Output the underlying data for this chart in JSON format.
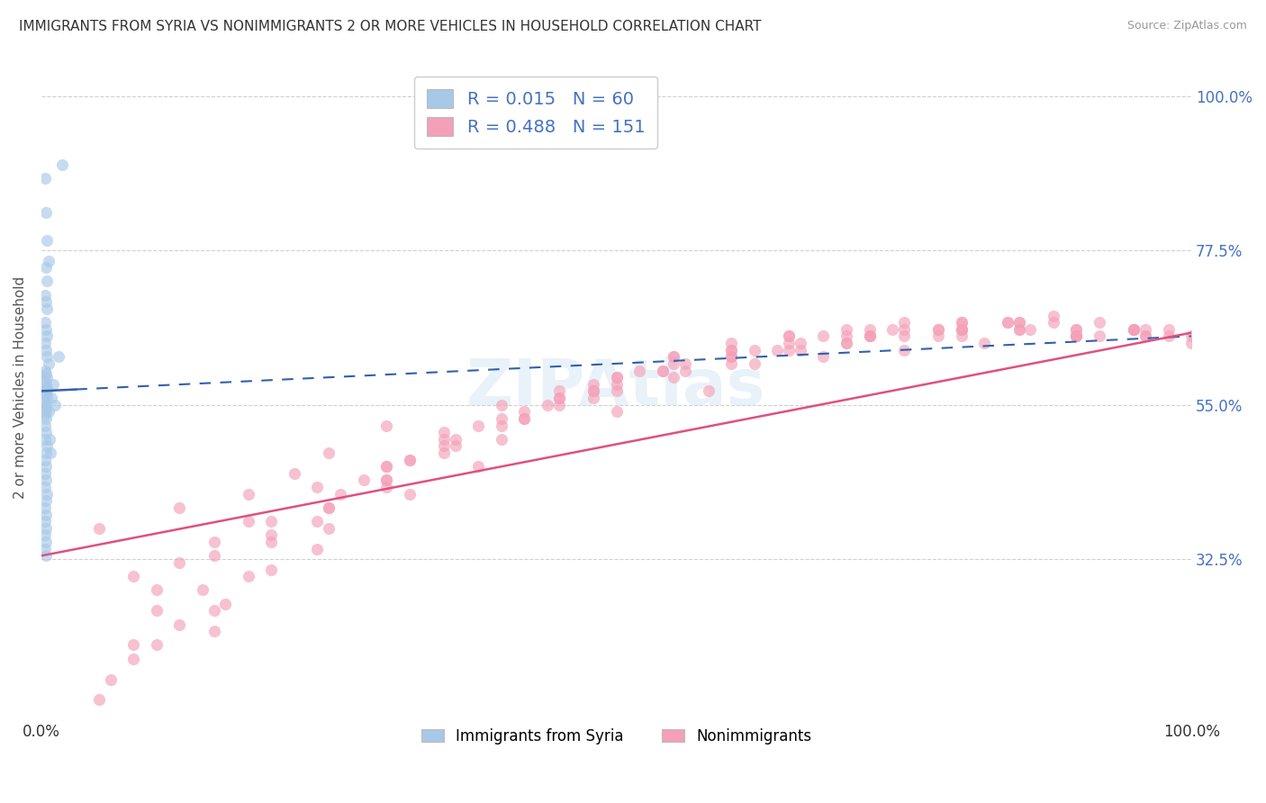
{
  "title": "IMMIGRANTS FROM SYRIA VS NONIMMIGRANTS 2 OR MORE VEHICLES IN HOUSEHOLD CORRELATION CHART",
  "source": "Source: ZipAtlas.com",
  "ylabel": "2 or more Vehicles in Household",
  "xlim": [
    0.0,
    100.0
  ],
  "ylim": [
    10.0,
    105.0
  ],
  "xtick_labels": [
    "0.0%",
    "100.0%"
  ],
  "xtick_positions": [
    0.0,
    100.0
  ],
  "ytick_labels": [
    "32.5%",
    "55.0%",
    "77.5%",
    "100.0%"
  ],
  "ytick_positions": [
    32.5,
    55.0,
    77.5,
    100.0
  ],
  "blue_R": 0.015,
  "blue_N": 60,
  "pink_R": 0.488,
  "pink_N": 151,
  "blue_color": "#a8c8e8",
  "pink_color": "#f4a0b8",
  "blue_line_color": "#3060b0",
  "pink_line_color": "#e05080",
  "legend_label_blue": "Immigrants from Syria",
  "legend_label_pink": "Nonimmigrants",
  "blue_scatter_x": [
    0.3,
    1.8,
    0.4,
    0.5,
    0.6,
    0.4,
    0.5,
    0.3,
    0.4,
    0.5,
    0.3,
    0.4,
    0.5,
    0.3,
    0.4,
    0.5,
    0.6,
    0.3,
    0.4,
    0.5,
    0.3,
    0.4,
    0.5,
    0.3,
    0.4,
    0.5,
    0.3,
    0.4,
    0.3,
    0.4,
    0.3,
    0.4,
    0.3,
    0.4,
    0.3,
    0.5,
    0.4,
    0.3,
    0.4,
    0.3,
    0.4,
    0.3,
    0.5,
    0.4,
    0.3,
    0.4,
    0.3,
    0.4,
    0.3,
    0.4,
    0.3,
    0.4,
    1.2,
    1.5,
    0.7,
    0.8,
    1.0,
    0.9,
    0.5,
    0.6
  ],
  "blue_scatter_y": [
    88.0,
    90.0,
    83.0,
    79.0,
    76.0,
    75.0,
    73.0,
    71.0,
    70.0,
    69.0,
    67.0,
    66.0,
    65.0,
    64.0,
    63.0,
    62.0,
    61.0,
    60.0,
    59.5,
    59.0,
    58.5,
    58.0,
    57.5,
    57.0,
    56.5,
    56.0,
    55.5,
    55.0,
    54.5,
    54.0,
    53.5,
    53.0,
    52.0,
    51.0,
    50.0,
    49.0,
    48.0,
    47.0,
    46.0,
    45.0,
    44.0,
    43.0,
    42.0,
    41.0,
    40.0,
    39.0,
    38.0,
    37.0,
    36.0,
    35.0,
    34.0,
    33.0,
    55.0,
    62.0,
    50.0,
    48.0,
    58.0,
    56.0,
    57.0,
    54.0
  ],
  "pink_scatter_x": [
    5.0,
    8.0,
    10.0,
    12.0,
    15.0,
    18.0,
    20.0,
    22.0,
    25.0,
    28.0,
    30.0,
    32.0,
    35.0,
    38.0,
    40.0,
    42.0,
    45.0,
    48.0,
    50.0,
    52.0,
    55.0,
    58.0,
    60.0,
    62.0,
    65.0,
    68.0,
    70.0,
    72.0,
    75.0,
    78.0,
    80.0,
    82.0,
    85.0,
    88.0,
    90.0,
    92.0,
    95.0,
    98.0,
    100.0,
    10.0,
    15.0,
    20.0,
    25.0,
    30.0,
    35.0,
    40.0,
    45.0,
    50.0,
    55.0,
    60.0,
    65.0,
    70.0,
    75.0,
    80.0,
    85.0,
    90.0,
    95.0,
    12.0,
    18.0,
    24.0,
    30.0,
    36.0,
    42.0,
    48.0,
    54.0,
    60.0,
    66.0,
    72.0,
    78.0,
    84.0,
    90.0,
    96.0,
    8.0,
    14.0,
    20.0,
    26.0,
    32.0,
    38.0,
    44.0,
    50.0,
    56.0,
    62.0,
    68.0,
    74.0,
    80.0,
    86.0,
    92.0,
    98.0,
    6.0,
    12.0,
    18.0,
    24.0,
    30.0,
    36.0,
    42.0,
    48.0,
    54.0,
    60.0,
    66.0,
    72.0,
    78.0,
    84.0,
    90.0,
    96.0,
    8.0,
    16.0,
    24.0,
    32.0,
    40.0,
    48.0,
    56.0,
    64.0,
    72.0,
    80.0,
    88.0,
    96.0,
    5.0,
    10.0,
    15.0,
    20.0,
    25.0,
    30.0,
    35.0,
    40.0,
    45.0,
    50.0,
    55.0,
    60.0,
    65.0,
    70.0,
    75.0,
    80.0,
    85.0,
    90.0,
    95.0,
    100.0,
    45.0,
    55.0,
    65.0,
    75.0,
    85.0,
    95.0,
    50.0,
    60.0,
    70.0,
    80.0,
    90.0,
    35.0,
    25.0,
    15.0,
    30.0
  ],
  "pink_scatter_y": [
    37.0,
    30.0,
    25.0,
    40.0,
    35.0,
    42.0,
    38.0,
    45.0,
    48.0,
    44.0,
    52.0,
    47.0,
    50.0,
    46.0,
    55.0,
    53.0,
    56.0,
    58.0,
    54.0,
    60.0,
    62.0,
    57.0,
    63.0,
    61.0,
    65.0,
    62.0,
    64.0,
    66.0,
    63.0,
    65.0,
    67.0,
    64.0,
    66.0,
    68.0,
    65.0,
    67.0,
    66.0,
    65.0,
    64.0,
    28.0,
    33.0,
    36.0,
    40.0,
    44.0,
    48.0,
    52.0,
    55.0,
    57.0,
    59.0,
    61.0,
    63.0,
    64.0,
    65.0,
    66.0,
    67.0,
    65.0,
    66.0,
    32.0,
    38.0,
    43.0,
    46.0,
    50.0,
    54.0,
    57.0,
    60.0,
    62.0,
    63.0,
    65.0,
    66.0,
    67.0,
    65.0,
    66.0,
    20.0,
    28.0,
    35.0,
    42.0,
    47.0,
    52.0,
    55.0,
    58.0,
    61.0,
    63.0,
    65.0,
    66.0,
    67.0,
    66.0,
    65.0,
    66.0,
    15.0,
    23.0,
    30.0,
    38.0,
    44.0,
    49.0,
    53.0,
    57.0,
    60.0,
    62.0,
    64.0,
    65.0,
    66.0,
    67.0,
    66.0,
    65.0,
    18.0,
    26.0,
    34.0,
    42.0,
    50.0,
    56.0,
    60.0,
    63.0,
    65.0,
    66.0,
    67.0,
    65.0,
    12.0,
    20.0,
    25.0,
    31.0,
    37.0,
    43.0,
    49.0,
    53.0,
    56.0,
    59.0,
    62.0,
    64.0,
    65.0,
    66.0,
    67.0,
    65.0,
    66.0,
    65.0,
    66.0,
    65.0,
    57.0,
    61.0,
    64.0,
    66.0,
    67.0,
    66.0,
    59.0,
    63.0,
    65.0,
    66.0,
    66.0,
    51.0,
    40.0,
    22.0,
    46.0
  ],
  "blue_trend_x0": 0.0,
  "blue_trend_y0": 57.0,
  "blue_trend_x1": 100.0,
  "blue_trend_y1": 65.0,
  "pink_trend_x0": 0.0,
  "pink_trend_y0": 33.0,
  "pink_trend_x1": 100.0,
  "pink_trend_y1": 65.5,
  "blue_solid_x1": 3.0,
  "watermark_text": "ZIPAtlas",
  "background_color": "#ffffff",
  "grid_color": "#d0d0d0",
  "right_tick_color": "#4472c4"
}
